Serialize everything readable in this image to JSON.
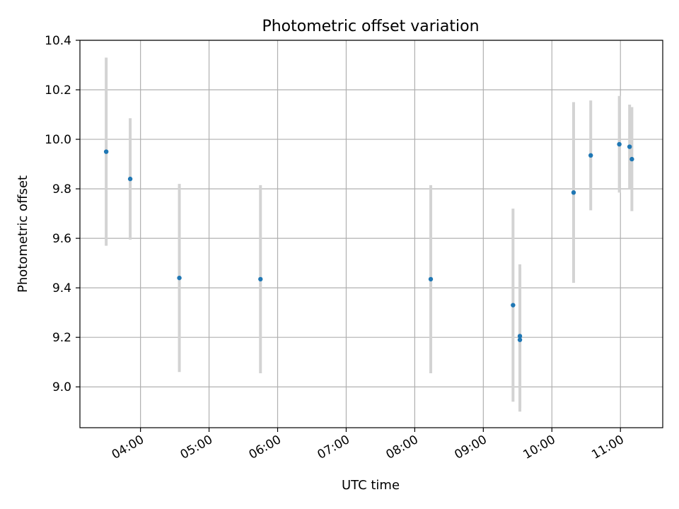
{
  "chart_data": {
    "type": "scatter",
    "title": "Photometric offset variation",
    "xlabel": "UTC time",
    "ylabel": "Photometric offset",
    "x_tick_labels": [
      "04:00",
      "05:00",
      "06:00",
      "07:00",
      "08:00",
      "09:00",
      "10:00",
      "11:00"
    ],
    "y_ticks": [
      9.0,
      9.2,
      9.4,
      9.6,
      9.8,
      10.0,
      10.2,
      10.4
    ],
    "y_tick_labels": [
      "9.0",
      "9.2",
      "9.4",
      "9.6",
      "9.8",
      "10.0",
      "10.2",
      "10.4"
    ],
    "xlim": [
      "03:07",
      "11:37"
    ],
    "ylim": [
      8.835,
      10.4
    ],
    "grid": true,
    "colors": {
      "point": "#1f77b4",
      "errorbar": "#d3d3d3",
      "grid": "#b0b0b0",
      "axis": "#000000"
    },
    "points": [
      {
        "x": "03:30",
        "y": 9.95,
        "err": 0.38
      },
      {
        "x": "03:51",
        "y": 9.84,
        "err": 0.245
      },
      {
        "x": "04:34",
        "y": 9.44,
        "err": 0.38
      },
      {
        "x": "05:45",
        "y": 9.435,
        "err": 0.38
      },
      {
        "x": "08:14",
        "y": 9.435,
        "err": 0.38
      },
      {
        "x": "09:26",
        "y": 9.33,
        "err": 0.39
      },
      {
        "x": "09:32",
        "y": 9.205,
        "err": 0.29
      },
      {
        "x": "09:32",
        "y": 9.19,
        "err": 0.29
      },
      {
        "x": "10:19",
        "y": 9.785,
        "err": 0.365
      },
      {
        "x": "10:34",
        "y": 9.935,
        "err": 0.222
      },
      {
        "x": "10:59",
        "y": 9.98,
        "err": 0.195
      },
      {
        "x": "11:08",
        "y": 9.97,
        "err": 0.17
      },
      {
        "x": "11:10",
        "y": 9.92,
        "err": 0.21
      }
    ]
  }
}
